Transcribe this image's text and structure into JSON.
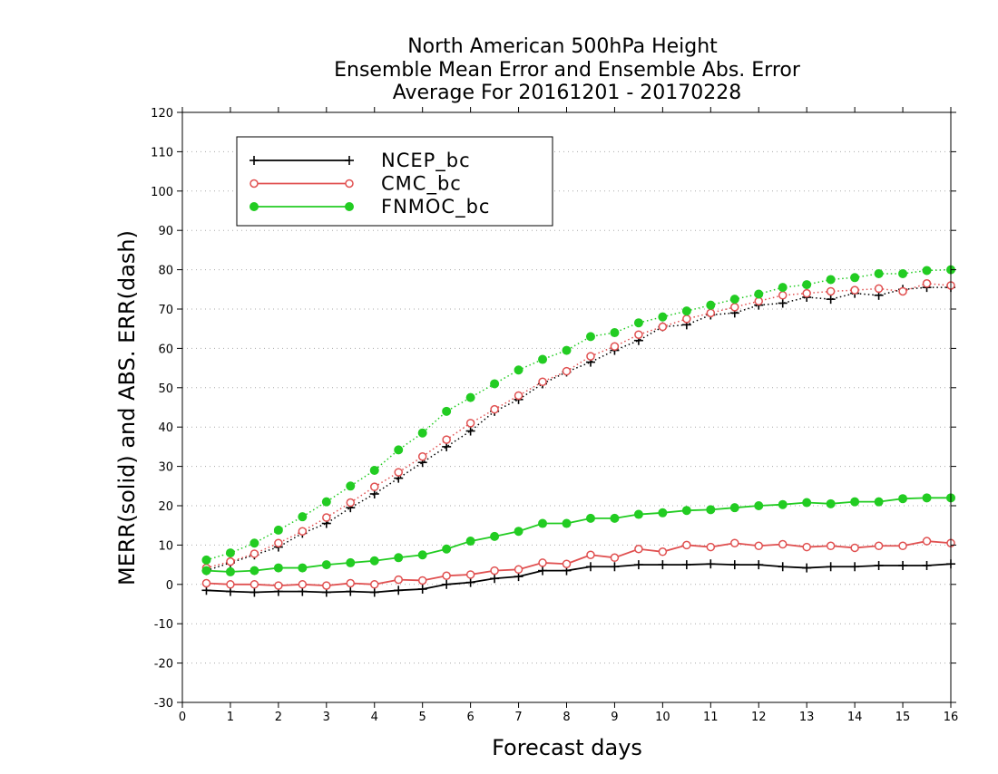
{
  "chart_data": {
    "type": "line",
    "title_lines": [
      "North American 500hPa Height",
      "Ensemble Mean Error and Ensemble Abs. Error",
      "Average For 20161201 - 20170228"
    ],
    "xlabel": "Forecast days",
    "ylabel": "MERR(solid) and ABS. ERR(dash)",
    "xlim": [
      0,
      16
    ],
    "ylim": [
      -30,
      120
    ],
    "x_ticks": [
      0,
      1,
      2,
      3,
      4,
      5,
      6,
      7,
      8,
      9,
      10,
      11,
      12,
      13,
      14,
      15,
      16
    ],
    "y_ticks": [
      -30,
      -20,
      -10,
      0,
      10,
      20,
      30,
      40,
      50,
      60,
      70,
      80,
      90,
      100,
      110,
      120
    ],
    "grid": "horizontal dotted",
    "legend_position": "top-left",
    "x": [
      0.5,
      1,
      1.5,
      2,
      2.5,
      3,
      3.5,
      4,
      4.5,
      5,
      5.5,
      6,
      6.5,
      7,
      7.5,
      8,
      8.5,
      9,
      9.5,
      10,
      10.5,
      11,
      11.5,
      12,
      12.5,
      13,
      13.5,
      14,
      14.5,
      15,
      15.5,
      16
    ],
    "series": [
      {
        "name": "NCEP_bc",
        "color": "#000000",
        "marker": "plus",
        "merr": [
          -1.5,
          -1.8,
          -2,
          -1.8,
          -1.8,
          -2,
          -1.8,
          -2,
          -1.5,
          -1.2,
          0,
          0.5,
          1.5,
          2,
          3.5,
          3.5,
          4.5,
          4.5,
          5,
          5,
          5,
          5.2,
          5,
          5,
          4.5,
          4.2,
          4.5,
          4.5,
          4.8,
          4.8,
          4.8,
          5.2
        ],
        "abs_err": [
          3.5,
          5.5,
          7.5,
          9.5,
          13,
          15.5,
          19.5,
          23,
          27,
          31,
          35,
          39,
          44,
          47,
          51,
          54,
          56.5,
          59.5,
          62,
          65.5,
          66,
          68.5,
          69,
          71,
          71.5,
          73,
          72.5,
          74,
          73.5,
          75,
          75.5,
          75.5
        ]
      },
      {
        "name": "CMC_bc",
        "color": "#e05050",
        "marker": "open-circle",
        "merr": [
          0.3,
          0,
          0,
          -0.3,
          0,
          -0.3,
          0.3,
          0,
          1.2,
          1,
          2.2,
          2.5,
          3.5,
          3.8,
          5.5,
          5.2,
          7.5,
          6.8,
          9,
          8.3,
          10,
          9.5,
          10.5,
          9.8,
          10.2,
          9.5,
          9.8,
          9.3,
          9.8,
          9.8,
          11,
          10.5
        ],
        "abs_err": [
          4.2,
          5.8,
          7.8,
          10.5,
          13.5,
          17,
          20.8,
          24.8,
          28.5,
          32.5,
          36.8,
          41,
          44.5,
          48,
          51.5,
          54.2,
          58,
          60.5,
          63.5,
          65.5,
          67.5,
          69,
          70.5,
          72,
          73.5,
          74,
          74.5,
          74.8,
          75.2,
          74.5,
          76.5,
          76
        ]
      },
      {
        "name": "FNMOC_bc",
        "color": "#22cc22",
        "marker": "filled-circle",
        "merr": [
          3.5,
          3.2,
          3.5,
          4.2,
          4.2,
          5,
          5.5,
          6,
          6.8,
          7.5,
          9,
          11,
          12.2,
          13.5,
          15.5,
          15.5,
          16.8,
          16.8,
          17.8,
          18.2,
          18.8,
          19,
          19.5,
          20,
          20.3,
          20.8,
          20.5,
          21,
          21,
          21.8,
          22,
          22
        ],
        "abs_err": [
          6.2,
          8,
          10.5,
          13.8,
          17.2,
          21,
          25,
          29,
          34.2,
          38.5,
          44,
          47.5,
          51,
          54.5,
          57.2,
          59.5,
          63,
          64,
          66.5,
          68,
          69.5,
          71,
          72.5,
          73.8,
          75.5,
          76.2,
          77.5,
          78,
          79,
          79,
          79.8,
          80
        ]
      }
    ]
  }
}
